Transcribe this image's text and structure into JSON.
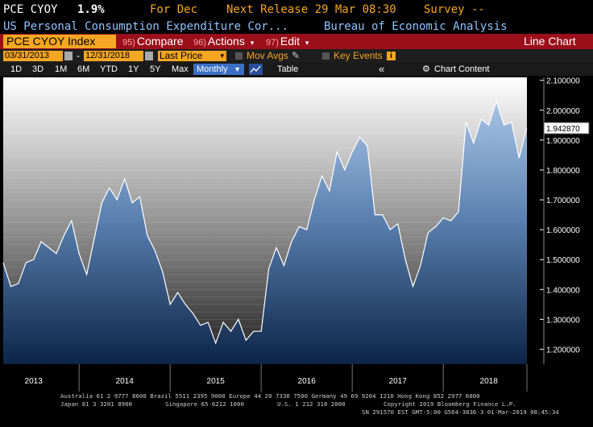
{
  "header": {
    "ticker": "PCE CYOY",
    "value": "1.9%",
    "for_label": "For Dec",
    "next_release": "Next Release 29 Mar 08:30",
    "survey": "Survey --"
  },
  "subheader": {
    "description": "US Personal Consumption Expenditure Cor...",
    "source": "Bureau of Economic Analysis"
  },
  "toolbar": {
    "index_name": "PCE CYOY Index",
    "compare_num": "95)",
    "compare_label": "Compare",
    "actions_num": "96)",
    "actions_label": "Actions",
    "edit_num": "97)",
    "edit_label": "Edit",
    "chart_type": "Line Chart"
  },
  "controls": {
    "start_date": "03/31/2013",
    "end_date": "12/31/2018",
    "dash": "-",
    "field": "Last Price",
    "mov_avgs": "Mov Avgs",
    "key_events": "Key Events"
  },
  "ranges": {
    "items": [
      "1D",
      "3D",
      "1M",
      "6M",
      "YTD",
      "1Y",
      "5Y",
      "Max"
    ],
    "frequency": "Monthly",
    "table": "Table",
    "collapse": "«",
    "chart_content": "Chart Content"
  },
  "chart_data": {
    "type": "area",
    "last_value_label": "1.942870",
    "ylim": [
      1.15,
      2.11
    ],
    "yticks": [
      "2.100000",
      "2.000000",
      "1.900000",
      "1.800000",
      "1.700000",
      "1.600000",
      "1.500000",
      "1.400000",
      "1.300000",
      "1.200000"
    ],
    "xticks": [
      "2013",
      "2014",
      "2015",
      "2016",
      "2017",
      "2018"
    ],
    "x": [
      "2013-03",
      "2013-04",
      "2013-05",
      "2013-06",
      "2013-07",
      "2013-08",
      "2013-09",
      "2013-10",
      "2013-11",
      "2013-12",
      "2014-01",
      "2014-02",
      "2014-03",
      "2014-04",
      "2014-05",
      "2014-06",
      "2014-07",
      "2014-08",
      "2014-09",
      "2014-10",
      "2014-11",
      "2014-12",
      "2015-01",
      "2015-02",
      "2015-03",
      "2015-04",
      "2015-05",
      "2015-06",
      "2015-07",
      "2015-08",
      "2015-09",
      "2015-10",
      "2015-11",
      "2015-12",
      "2016-01",
      "2016-02",
      "2016-03",
      "2016-04",
      "2016-05",
      "2016-06",
      "2016-07",
      "2016-08",
      "2016-09",
      "2016-10",
      "2016-11",
      "2016-12",
      "2017-01",
      "2017-02",
      "2017-03",
      "2017-04",
      "2017-05",
      "2017-06",
      "2017-07",
      "2017-08",
      "2017-09",
      "2017-10",
      "2017-11",
      "2017-12",
      "2018-01",
      "2018-02",
      "2018-03",
      "2018-04",
      "2018-05",
      "2018-06",
      "2018-07",
      "2018-08",
      "2018-09",
      "2018-10",
      "2018-11",
      "2018-12"
    ],
    "values": [
      1.49,
      1.41,
      1.42,
      1.49,
      1.5,
      1.56,
      1.54,
      1.52,
      1.58,
      1.63,
      1.52,
      1.45,
      1.57,
      1.69,
      1.74,
      1.7,
      1.77,
      1.69,
      1.71,
      1.58,
      1.53,
      1.46,
      1.35,
      1.39,
      1.35,
      1.32,
      1.28,
      1.29,
      1.22,
      1.29,
      1.26,
      1.3,
      1.23,
      1.26,
      1.26,
      1.47,
      1.54,
      1.48,
      1.56,
      1.61,
      1.6,
      1.7,
      1.78,
      1.73,
      1.86,
      1.8,
      1.86,
      1.91,
      1.88,
      1.65,
      1.65,
      1.6,
      1.62,
      1.5,
      1.41,
      1.48,
      1.59,
      1.61,
      1.64,
      1.63,
      1.66,
      1.96,
      1.89,
      1.97,
      1.95,
      2.03,
      1.95,
      1.96,
      1.84,
      1.94
    ]
  },
  "footer": {
    "line1": "Australia 61 2 9777 8600 Brazil 5511 2395 9000 Europe 44 20 7330 7500 Germany 49 69 9204 1210 Hong Kong 852 2977 6000",
    "line2a": "Japan 81 3 3201 8900",
    "line2b": "Singapore 65 6212 1000",
    "line2c": "U.S. 1 212 318 2000",
    "line2d": "Copyright 2019 Bloomberg Finance L.P.",
    "line3": "SN 291570 EST  GMT-5:00 G564-3836-3 01-Mar-2019 08:45:34"
  }
}
